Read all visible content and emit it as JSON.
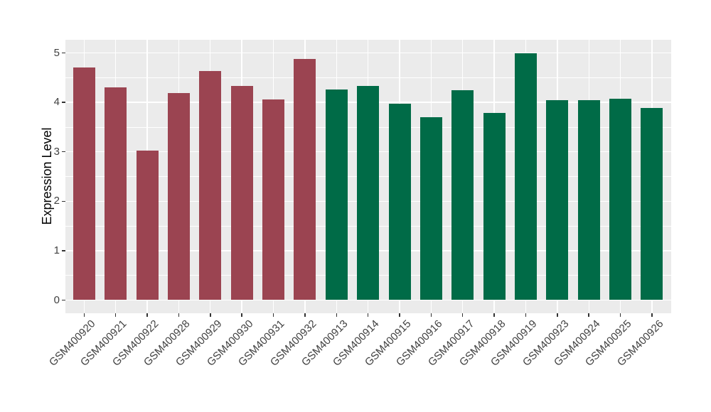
{
  "chart_data": {
    "type": "bar",
    "title": "",
    "xlabel": "",
    "ylabel": "Expression Level",
    "ylim": [
      0,
      5.27
    ],
    "yticks": [
      0,
      1,
      2,
      3,
      4,
      5
    ],
    "yticks_minor": [
      0.5,
      1.5,
      2.5,
      3.5,
      4.5
    ],
    "grid": "on",
    "legend_position": "none",
    "panel_bg": "#EBEBEB",
    "grid_color": "#FFFFFF",
    "group_colors": {
      "group1": "#9B4451",
      "group2": "#006B47"
    },
    "bars": [
      {
        "label": "GSM400920",
        "value": 4.7,
        "group": "group1"
      },
      {
        "label": "GSM400921",
        "value": 4.3,
        "group": "group1"
      },
      {
        "label": "GSM400922",
        "value": 3.02,
        "group": "group1"
      },
      {
        "label": "GSM400928",
        "value": 4.19,
        "group": "group1"
      },
      {
        "label": "GSM400929",
        "value": 4.64,
        "group": "group1"
      },
      {
        "label": "GSM400930",
        "value": 4.33,
        "group": "group1"
      },
      {
        "label": "GSM400931",
        "value": 4.06,
        "group": "group1"
      },
      {
        "label": "GSM400932",
        "value": 4.88,
        "group": "group1"
      },
      {
        "label": "GSM400913",
        "value": 4.26,
        "group": "group2"
      },
      {
        "label": "GSM400914",
        "value": 4.33,
        "group": "group2"
      },
      {
        "label": "GSM400915",
        "value": 3.97,
        "group": "group2"
      },
      {
        "label": "GSM400916",
        "value": 3.7,
        "group": "group2"
      },
      {
        "label": "GSM400917",
        "value": 4.25,
        "group": "group2"
      },
      {
        "label": "GSM400918",
        "value": 3.79,
        "group": "group2"
      },
      {
        "label": "GSM400919",
        "value": 4.99,
        "group": "group2"
      },
      {
        "label": "GSM400923",
        "value": 4.04,
        "group": "group2"
      },
      {
        "label": "GSM400924",
        "value": 4.05,
        "group": "group2"
      },
      {
        "label": "GSM400925",
        "value": 4.08,
        "group": "group2"
      },
      {
        "label": "GSM400926",
        "value": 3.88,
        "group": "group2"
      }
    ]
  }
}
